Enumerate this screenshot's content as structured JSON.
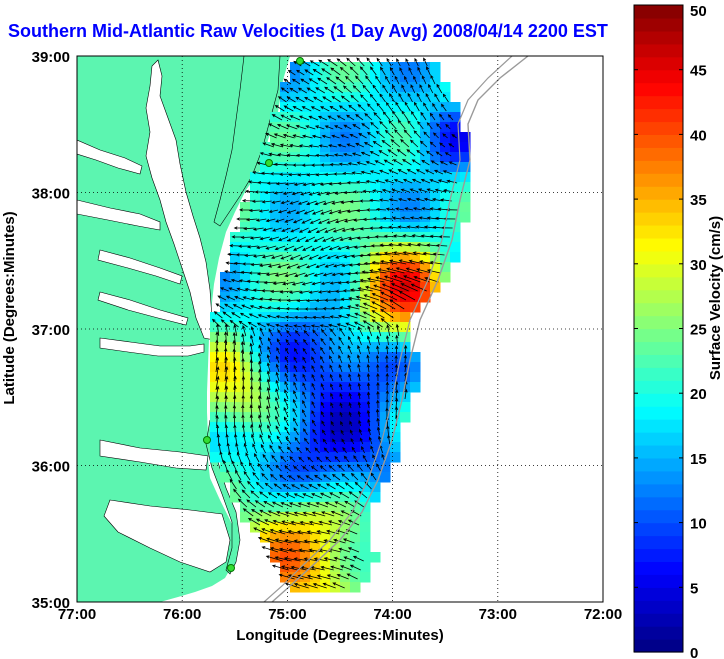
{
  "title": "Southern Mid-Atlantic Raw Velocities (1 Day Avg) 2008/04/14 2200 EST",
  "map": {
    "xlabel": "Longitude (Degrees:Minutes)",
    "ylabel": "Latitude (Degrees:Minutes)",
    "x_ticks": [
      "77:00",
      "76:00",
      "75:00",
      "74:00",
      "73:00",
      "72:00"
    ],
    "y_ticks": [
      "39:00",
      "38:00",
      "37:00",
      "36:00",
      "35:00"
    ],
    "lon_range": [
      -77,
      -72
    ],
    "lat_range": [
      35,
      39
    ],
    "grid": true,
    "land_color": "#5cf5b0",
    "water_color": "#ffffff"
  },
  "colorbar": {
    "label": "Surface Velocity (cm/s)",
    "min": 0,
    "max": 50,
    "ticks": [
      "0",
      "5",
      "10",
      "15",
      "20",
      "25",
      "30",
      "35",
      "40",
      "45",
      "50"
    ],
    "colormap": "jet"
  }
}
